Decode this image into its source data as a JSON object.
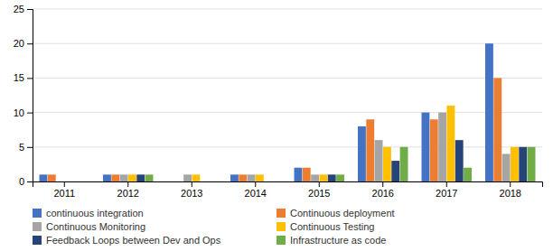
{
  "chart_data": {
    "type": "bar",
    "categories": [
      "2011",
      "2012",
      "2013",
      "2014",
      "2015",
      "2016",
      "2017",
      "2018"
    ],
    "series": [
      {
        "name": "continuous integration",
        "color": "#4472c4",
        "values": [
          1,
          1,
          0,
          1,
          2,
          8,
          10,
          20
        ]
      },
      {
        "name": "Continuous deployment",
        "color": "#ed7d31",
        "values": [
          1,
          1,
          0,
          1,
          2,
          9,
          9,
          15
        ]
      },
      {
        "name": "Continuous Monitoring",
        "color": "#a5a5a5",
        "values": [
          0,
          1,
          1,
          1,
          1,
          6,
          10,
          4
        ]
      },
      {
        "name": "Continuous Testing",
        "color": "#ffc000",
        "values": [
          0,
          1,
          1,
          1,
          1,
          5,
          11,
          5
        ]
      },
      {
        "name": "Feedback Loops between Dev and Ops",
        "color": "#264478",
        "values": [
          0,
          1,
          0,
          0,
          1,
          3,
          6,
          5
        ]
      },
      {
        "name": "Infrastructure as code",
        "color": "#70ad47",
        "values": [
          0,
          1,
          0,
          0,
          1,
          5,
          2,
          5
        ]
      }
    ],
    "ylim": [
      0,
      25
    ],
    "yticks": [
      0,
      5,
      10,
      15,
      20,
      25
    ],
    "grid": true,
    "legend": "bottom"
  }
}
